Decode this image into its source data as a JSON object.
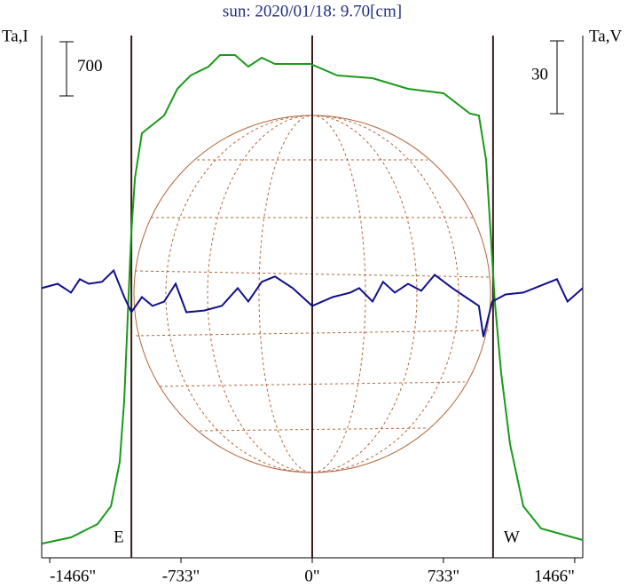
{
  "chart_data": {
    "type": "line",
    "title": "sun: 2020/01/18: 9.70[cm]",
    "y_label": "Ta,I",
    "y2_label": "Ta,V",
    "xlim": [
      -1511,
      1511
    ],
    "xticks": [
      {
        "value": -1466,
        "label": "-1466\""
      },
      {
        "value": -733,
        "label": "-733\""
      },
      {
        "value": 0,
        "label": "0\""
      },
      {
        "value": 733,
        "label": "733\""
      },
      {
        "value": 1466,
        "label": "1466\""
      }
    ],
    "ylim": [
      0,
      6750
    ],
    "y2lim": [
      -111,
      104
    ],
    "scale_bars": [
      {
        "value": 700,
        "axis": "y"
      },
      {
        "value": 30,
        "axis": "y2"
      }
    ],
    "limbs": [
      {
        "value": -1010,
        "label": "E"
      },
      {
        "value": 0
      },
      {
        "value": 1010,
        "label": "W"
      }
    ],
    "series": [
      {
        "name": "I",
        "color": "#1a9a1a",
        "x": [
          -1510,
          -1347,
          -1199,
          -1124,
          -1075,
          -1050,
          -1025,
          -1010,
          -990,
          -951,
          -877,
          -827,
          -753,
          -679,
          -579,
          -515,
          -431,
          -357,
          -282,
          -208,
          -10,
          139,
          337,
          535,
          733,
          882,
          931,
          971,
          996,
          1020,
          1055,
          1105,
          1179,
          1278,
          1511
        ],
        "values": [
          184,
          264,
          436,
          666,
          1240,
          2043,
          3421,
          4224,
          4913,
          5487,
          5625,
          5717,
          6061,
          6234,
          6348,
          6498,
          6498,
          6348,
          6463,
          6383,
          6383,
          6234,
          6199,
          6061,
          6004,
          5740,
          5717,
          5143,
          4224,
          3306,
          2388,
          1469,
          666,
          379,
          230
        ]
      },
      {
        "name": "V",
        "color": "#10108a",
        "axis": "y2",
        "x": [
          -1511,
          -1422,
          -1347,
          -1298,
          -1248,
          -1174,
          -1109,
          -1050,
          -1010,
          -951,
          -892,
          -827,
          -763,
          -703,
          -604,
          -505,
          -416,
          -357,
          -282,
          -208,
          -109,
          0,
          114,
          213,
          262,
          337,
          396,
          461,
          535,
          609,
          684,
          783,
          857,
          931,
          956,
          1005,
          1080,
          1179,
          1278,
          1367,
          1426,
          1511
        ],
        "values": [
          0,
          1.8,
          -1.8,
          3.7,
          1.8,
          2.6,
          7.3,
          -3.7,
          -9.9,
          -3.7,
          -7.3,
          -5.5,
          1.8,
          -9.9,
          -9.2,
          -7.3,
          0,
          -5.5,
          2.6,
          4.8,
          0,
          -7.3,
          -3.7,
          -1.8,
          0,
          -5.5,
          2.6,
          -1.8,
          1.8,
          -1.1,
          5.5,
          0,
          -3.7,
          -7.3,
          -20.1,
          -5.5,
          -2.6,
          -1.8,
          1.1,
          3.7,
          -5.5,
          0
        ]
      }
    ]
  }
}
